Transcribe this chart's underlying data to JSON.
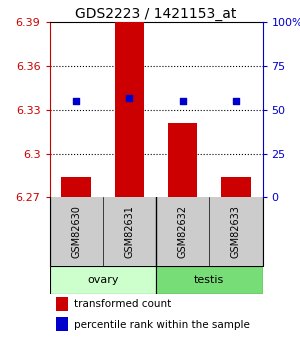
{
  "title": "GDS2223 / 1421153_at",
  "samples": [
    "GSM82630",
    "GSM82631",
    "GSM82632",
    "GSM82633"
  ],
  "groups": [
    "ovary",
    "ovary",
    "testis",
    "testis"
  ],
  "group_labels": [
    "ovary",
    "testis"
  ],
  "red_values": [
    6.284,
    6.39,
    6.321,
    6.284
  ],
  "blue_values": [
    55,
    57,
    55,
    55
  ],
  "ymin": 6.27,
  "ymax": 6.39,
  "yticks_left": [
    6.27,
    6.3,
    6.33,
    6.36,
    6.39
  ],
  "yticks_right": [
    0,
    25,
    50,
    75,
    100
  ],
  "ytick_labels_left": [
    "6.27",
    "6.3",
    "6.33",
    "6.36",
    "6.39"
  ],
  "ytick_labels_right": [
    "0",
    "25",
    "50",
    "75",
    "100%"
  ],
  "left_tick_color": "#cc0000",
  "right_tick_color": "#0000cc",
  "bar_width": 0.55,
  "bar_color": "#cc0000",
  "dot_color": "#0000cc",
  "dot_size": 25,
  "grid_color": "#000000",
  "bg_color": "#ffffff",
  "sample_bg": "#cccccc",
  "ovary_color": "#ccffcc",
  "testis_color": "#77dd77",
  "title_fontsize": 10,
  "tick_fontsize": 8,
  "label_fontsize": 8,
  "sample_label_fontsize": 7,
  "legend_fontsize": 7.5
}
